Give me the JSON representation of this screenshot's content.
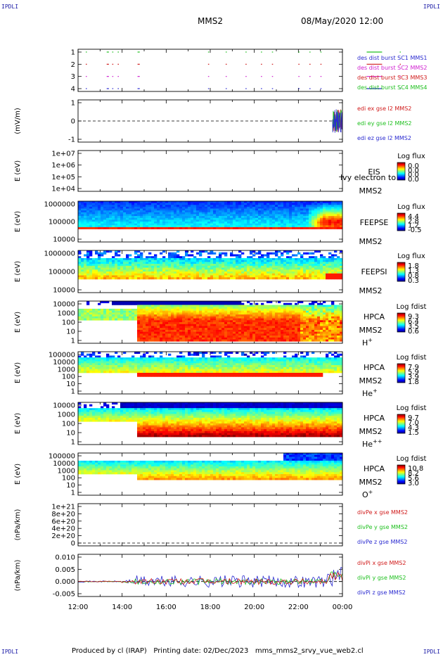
{
  "corner_label": "IPDLI",
  "header": {
    "spacecraft": "MMS2",
    "datetime": "08/May/2020 12:00"
  },
  "footer": {
    "produced_by": "Produced by cl (IRAP)",
    "printing_date": "Printing date: 02/Dec/2023",
    "filename": "mms_mms2_srvy_vue_web2.cl"
  },
  "time_axis": {
    "ticks": [
      "12:00",
      "14:00",
      "16:00",
      "18:00",
      "20:00",
      "22:00",
      "00:00"
    ]
  },
  "chart_data": [
    {
      "type": "scatter",
      "id": "burst",
      "ylabel": "",
      "yticks": [
        "1",
        "2",
        "3",
        "4"
      ],
      "ylim": [
        0.5,
        4.5
      ],
      "series": [
        {
          "name": "des dist burst SC1 MMS1",
          "color": "#2a2ad0"
        },
        {
          "name": "des dist burst SC2 MMS2",
          "color": "#d020d0"
        },
        {
          "name": "des dist burst SC3 MMS3",
          "color": "#d01a1a"
        },
        {
          "name": "des dist burst SC4 MMS4",
          "color": "#20c020"
        }
      ],
      "segments_hours": [
        [
          0.35,
          0.4
        ],
        [
          1.3,
          1.4
        ],
        [
          1.55,
          1.6
        ],
        [
          1.8,
          1.85
        ],
        [
          2.7,
          2.8
        ],
        [
          5.9,
          5.95
        ],
        [
          6.7,
          6.75
        ],
        [
          7.6,
          7.65
        ],
        [
          8.3,
          8.35
        ],
        [
          8.8,
          8.85
        ],
        [
          10.0,
          10.05
        ],
        [
          10.5,
          10.55
        ],
        [
          11.0,
          11.05
        ],
        [
          13.1,
          13.8
        ],
        [
          14.6,
          14.65
        ]
      ]
    },
    {
      "type": "line",
      "id": "edi",
      "ylabel": "(mV/m)",
      "yticks": [
        "1",
        "0",
        "-1"
      ],
      "ylim": [
        -2,
        2
      ],
      "series": [
        {
          "name": "edi ex gse l2 MMS2",
          "color": "#d01a1a"
        },
        {
          "name": "edi ey gse l2 MMS2",
          "color": "#20c020"
        },
        {
          "name": "edi ez gse l2 MMS2",
          "color": "#2a2ad0"
        }
      ]
    },
    {
      "type": "heatmap",
      "id": "eis",
      "ylabel": "E (eV)",
      "yticks": [
        "1e+07",
        "1e+06",
        "1e+05",
        "1e+04"
      ],
      "instrument": [
        "EIS",
        "MMS2"
      ],
      "overlay_text": "lvy electron to",
      "colorbar_title": "Log flux",
      "colorbar_ticks": [
        "0.0",
        "0.0",
        "0.0",
        "0.0"
      ]
    },
    {
      "type": "heatmap",
      "id": "feepse",
      "ylabel": "E (eV)",
      "yticks": [
        "1000000",
        "100000",
        "10000"
      ],
      "instrument": [
        "FEEPSE",
        "MMS2"
      ],
      "colorbar_title": "Log flux",
      "colorbar_ticks": [
        "4.4",
        "2.8",
        "1.2",
        "-0.5"
      ]
    },
    {
      "type": "heatmap",
      "id": "feepsi",
      "ylabel": "E (eV)",
      "yticks": [
        "1000000",
        "100000",
        "10000"
      ],
      "instrument": [
        "FEEPSI",
        "MMS2"
      ],
      "colorbar_title": "Log flux",
      "colorbar_ticks": [
        "1.8",
        "1.3",
        "0.8",
        "0.3"
      ]
    },
    {
      "type": "heatmap",
      "id": "hpca_h",
      "ylabel": "E (eV)",
      "yticks": [
        "10000",
        "1000",
        "100",
        "10",
        "1"
      ],
      "instrument": [
        "HPCA",
        "MMS2"
      ],
      "species": "H",
      "charge": "+",
      "colorbar_title": "Log fdist",
      "colorbar_ticks": [
        "9.3",
        "6.4",
        "3.5",
        "0.6"
      ]
    },
    {
      "type": "heatmap",
      "id": "hpca_he",
      "ylabel": "E (eV)",
      "yticks": [
        "100000",
        "10000",
        "1000",
        "100",
        "10",
        "1"
      ],
      "instrument": [
        "HPCA",
        "MMS2"
      ],
      "species": "He",
      "charge": "+",
      "colorbar_title": "Log fdist",
      "colorbar_ticks": [
        "7.9",
        "5.9",
        "3.9",
        "1.8"
      ]
    },
    {
      "type": "heatmap",
      "id": "hpca_hepp",
      "ylabel": "E (eV)",
      "yticks": [
        "10000",
        "1000",
        "100",
        "10",
        "1"
      ],
      "instrument": [
        "HPCA",
        "MMS2"
      ],
      "species": "He",
      "charge": "++",
      "colorbar_title": "Log fdist",
      "colorbar_ticks": [
        "9.7",
        "7.0",
        "4.3",
        "1.5"
      ]
    },
    {
      "type": "heatmap",
      "id": "hpca_o",
      "ylabel": "E (eV)",
      "yticks": [
        "100000",
        "10000",
        "1000",
        "100",
        "10",
        "1"
      ],
      "instrument": [
        "HPCA",
        "MMS2"
      ],
      "species": "O",
      "charge": "+",
      "colorbar_title": "Log fdist",
      "colorbar_ticks": [
        "10.8",
        "8.2",
        "5.6",
        "3.0"
      ]
    },
    {
      "type": "line",
      "id": "divpe",
      "ylabel": "(nPa/km)",
      "yticks": [
        "1e+21",
        "8e+20",
        "6e+20",
        "4e+20",
        "2e+20",
        "0"
      ],
      "ylim": [
        0,
        1e+21
      ],
      "series": [
        {
          "name": "divPe x gse MMS2",
          "color": "#d01a1a"
        },
        {
          "name": "divPe y gse MMS2",
          "color": "#20c020"
        },
        {
          "name": "divPe z gse MMS2",
          "color": "#2a2ad0"
        }
      ]
    },
    {
      "type": "line",
      "id": "divpi",
      "ylabel": "(nPa/km)",
      "yticks": [
        "0.010",
        "0.005",
        "0.000",
        "-0.005"
      ],
      "ylim": [
        -0.0065,
        0.012
      ],
      "series": [
        {
          "name": "divPi x gse MMS2",
          "color": "#d01a1a"
        },
        {
          "name": "divPi y gse MMS2",
          "color": "#20c020"
        },
        {
          "name": "divPi z gse MMS2",
          "color": "#2a2ad0"
        }
      ]
    }
  ]
}
